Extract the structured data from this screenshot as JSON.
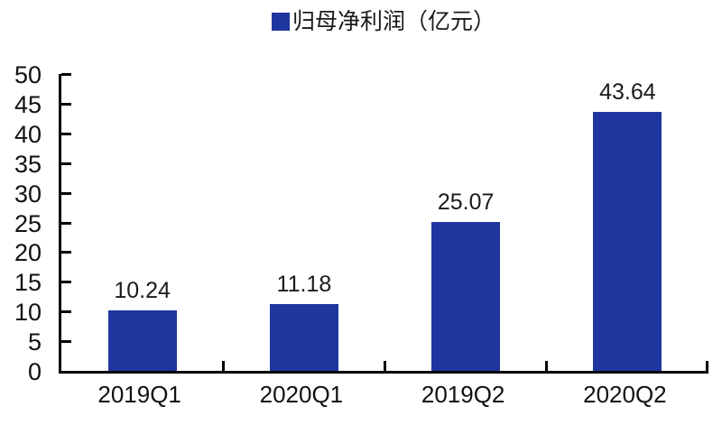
{
  "chart_data": {
    "type": "bar",
    "title": "",
    "legend": {
      "label": "归母净利润（亿元）",
      "position": "top-center"
    },
    "categories": [
      "2019Q1",
      "2020Q1",
      "2019Q2",
      "2020Q2"
    ],
    "values": [
      10.24,
      11.18,
      25.07,
      43.64
    ],
    "value_labels": [
      "10.24",
      "11.18",
      "25.07",
      "43.64"
    ],
    "xlabel": "",
    "ylabel": "",
    "ylim": [
      0,
      50
    ],
    "y_ticks": [
      0,
      5,
      10,
      15,
      20,
      25,
      30,
      35,
      40,
      45,
      50
    ],
    "grid": false,
    "colors": {
      "bar": "#1e369e",
      "axis": "#000000",
      "text": "#1a1a1a",
      "background": "#ffffff"
    }
  }
}
